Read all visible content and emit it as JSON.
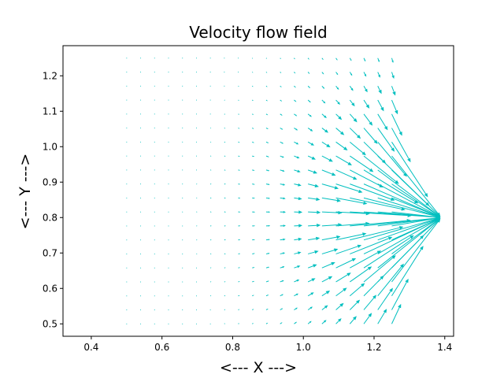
{
  "chart_data": {
    "type": "quiver",
    "title": "Velocity flow field",
    "xlabel": "<--- X --->",
    "ylabel": "<--- Y --->",
    "xlim": [
      0.32,
      1.425
    ],
    "ylim": [
      0.465,
      1.285
    ],
    "xticks": [
      0.4,
      0.6,
      0.8,
      1.0,
      1.2,
      1.4
    ],
    "xtick_labels": [
      "0.4",
      "0.6",
      "0.8",
      "1.0",
      "1.2",
      "1.4"
    ],
    "yticks": [
      0.5,
      0.6,
      0.7,
      0.8,
      0.9,
      1.0,
      1.1,
      1.2
    ],
    "ytick_labels": [
      "0.5",
      "0.6",
      "0.7",
      "0.8",
      "0.9",
      "1.0",
      "1.1",
      "1.2"
    ],
    "grid": false,
    "arrow_color": "#00bfbf",
    "source_point": [
      1.39,
      0.8
    ],
    "x_range": [
      0.5,
      1.25
    ],
    "y_range": [
      0.5,
      1.25
    ],
    "nx": 20,
    "ny": 20
  }
}
